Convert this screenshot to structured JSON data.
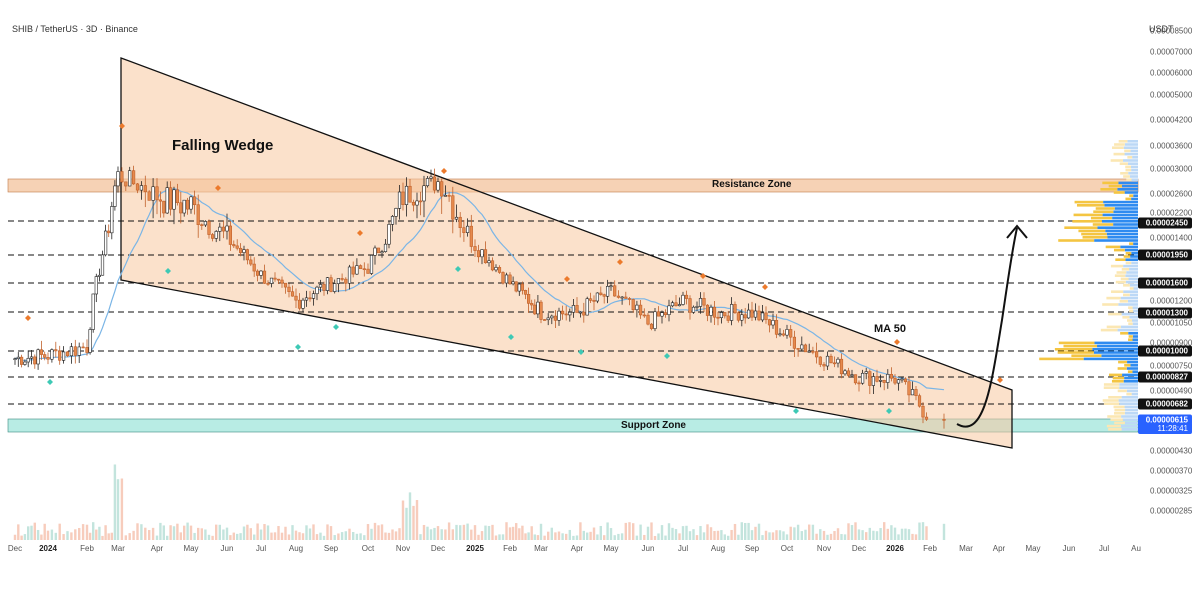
{
  "header": {
    "symbol_title": "SHIB / TetherUS · 3D · Binance"
  },
  "axis": {
    "unit": "USDT",
    "price_labels": [
      "0.00008500",
      "0.00007000",
      "0.00006000",
      "0.00005000",
      "0.00004200",
      "0.00003600",
      "0.00003000",
      "0.00002600",
      "0.00002200",
      "0.00001400",
      "0.00001200",
      "0.00001050",
      "0.00000900",
      "0.00000750",
      "0.00000490",
      "0.00000430",
      "0.00000370",
      "0.00000325",
      "0.00000285"
    ],
    "price_badges": [
      {
        "value": "0.00002450",
        "style": "dark"
      },
      {
        "value": "0.00001950",
        "style": "dark"
      },
      {
        "value": "0.00001600",
        "style": "dark"
      },
      {
        "value": "0.00001300",
        "style": "dark"
      },
      {
        "value": "0.00001000",
        "style": "dark"
      },
      {
        "value": "0.00000827",
        "style": "dark"
      },
      {
        "value": "0.00000682",
        "style": "dark"
      },
      {
        "value": "0.00000615",
        "style": "blue"
      }
    ],
    "countdown": "11:28:41",
    "time_labels": [
      {
        "t": "Dec",
        "bold": false
      },
      {
        "t": "2024",
        "bold": true
      },
      {
        "t": "Feb",
        "bold": false
      },
      {
        "t": "Mar",
        "bold": false
      },
      {
        "t": "Apr",
        "bold": false
      },
      {
        "t": "May",
        "bold": false
      },
      {
        "t": "Jun",
        "bold": false
      },
      {
        "t": "Jul",
        "bold": false
      },
      {
        "t": "Aug",
        "bold": false
      },
      {
        "t": "Sep",
        "bold": false
      },
      {
        "t": "Oct",
        "bold": false
      },
      {
        "t": "Nov",
        "bold": false
      },
      {
        "t": "Dec",
        "bold": false
      },
      {
        "t": "2025",
        "bold": true
      },
      {
        "t": "Feb",
        "bold": false
      },
      {
        "t": "Mar",
        "bold": false
      },
      {
        "t": "Apr",
        "bold": false
      },
      {
        "t": "May",
        "bold": false
      },
      {
        "t": "Jun",
        "bold": false
      },
      {
        "t": "Jul",
        "bold": false
      },
      {
        "t": "Aug",
        "bold": false
      },
      {
        "t": "Sep",
        "bold": false
      },
      {
        "t": "Oct",
        "bold": false
      },
      {
        "t": "Nov",
        "bold": false
      },
      {
        "t": "Dec",
        "bold": false
      },
      {
        "t": "2026",
        "bold": true
      },
      {
        "t": "Feb",
        "bold": false
      },
      {
        "t": "Mar",
        "bold": false
      },
      {
        "t": "Apr",
        "bold": false
      },
      {
        "t": "May",
        "bold": false
      },
      {
        "t": "Jun",
        "bold": false
      },
      {
        "t": "Jul",
        "bold": false
      },
      {
        "t": "Au",
        "bold": false
      }
    ]
  },
  "annotations": {
    "pattern": "Falling Wedge",
    "resistance": "Resistance Zone",
    "support": "Support Zone",
    "ma": "MA 50"
  },
  "colors": {
    "up": "#26a69a",
    "down": "#ef5350",
    "candle_orange": "#e58a4e",
    "wedge_fill": "#f8c9a0",
    "resistance_fill": "#f6d2b5",
    "support_fill": "#b8ece4",
    "ma_line": "#7ab5e6",
    "level_line": "#111111",
    "highlight_blue": "#2962ff"
  },
  "chart_data": {
    "type": "candlestick",
    "symbol": "SHIB / TetherUS",
    "timeframe": "3D",
    "exchange": "Binance",
    "levels": [
      2.45e-05,
      1.95e-05,
      1.6e-05,
      1.3e-05,
      1e-05,
      8.27e-06,
      6.82e-06,
      6.15e-06
    ],
    "resistance_zone": [
      2.8e-05,
      3.05e-05
    ],
    "support_zone": [
      5.9e-06,
      6.5e-06
    ],
    "last_price": 6.15e-06,
    "approx_closes": [
      {
        "date": "2023-12",
        "close": 9.5e-06
      },
      {
        "date": "2024-01",
        "close": 9.7e-06
      },
      {
        "date": "2024-02",
        "close": 1.03e-05
      },
      {
        "date": "2024-03",
        "close": 2.9e-05
      },
      {
        "date": "2024-04",
        "close": 2.6e-05
      },
      {
        "date": "2024-05",
        "close": 2.5e-05
      },
      {
        "date": "2024-06",
        "close": 2.2e-05
      },
      {
        "date": "2024-07",
        "close": 1.7e-05
      },
      {
        "date": "2024-08",
        "close": 1.4e-05
      },
      {
        "date": "2024-09",
        "close": 1.6e-05
      },
      {
        "date": "2024-10",
        "close": 1.8e-05
      },
      {
        "date": "2024-11",
        "close": 2.6e-05
      },
      {
        "date": "2024-12",
        "close": 2.8e-05
      },
      {
        "date": "2025-01",
        "close": 2.1e-05
      },
      {
        "date": "2025-02",
        "close": 1.6e-05
      },
      {
        "date": "2025-03",
        "close": 1.3e-05
      },
      {
        "date": "2025-04",
        "close": 1.3e-05
      },
      {
        "date": "2025-05",
        "close": 1.5e-05
      },
      {
        "date": "2025-06",
        "close": 1.2e-05
      },
      {
        "date": "2025-07",
        "close": 1.4e-05
      },
      {
        "date": "2025-08",
        "close": 1.3e-05
      },
      {
        "date": "2025-09",
        "close": 1.3e-05
      },
      {
        "date": "2025-10",
        "close": 1.1e-05
      },
      {
        "date": "2025-11",
        "close": 9.5e-06
      },
      {
        "date": "2025-12",
        "close": 8.3e-06
      },
      {
        "date": "2026-01",
        "close": 8.2e-06
      },
      {
        "date": "2026-02",
        "close": 6.2e-06
      }
    ]
  }
}
